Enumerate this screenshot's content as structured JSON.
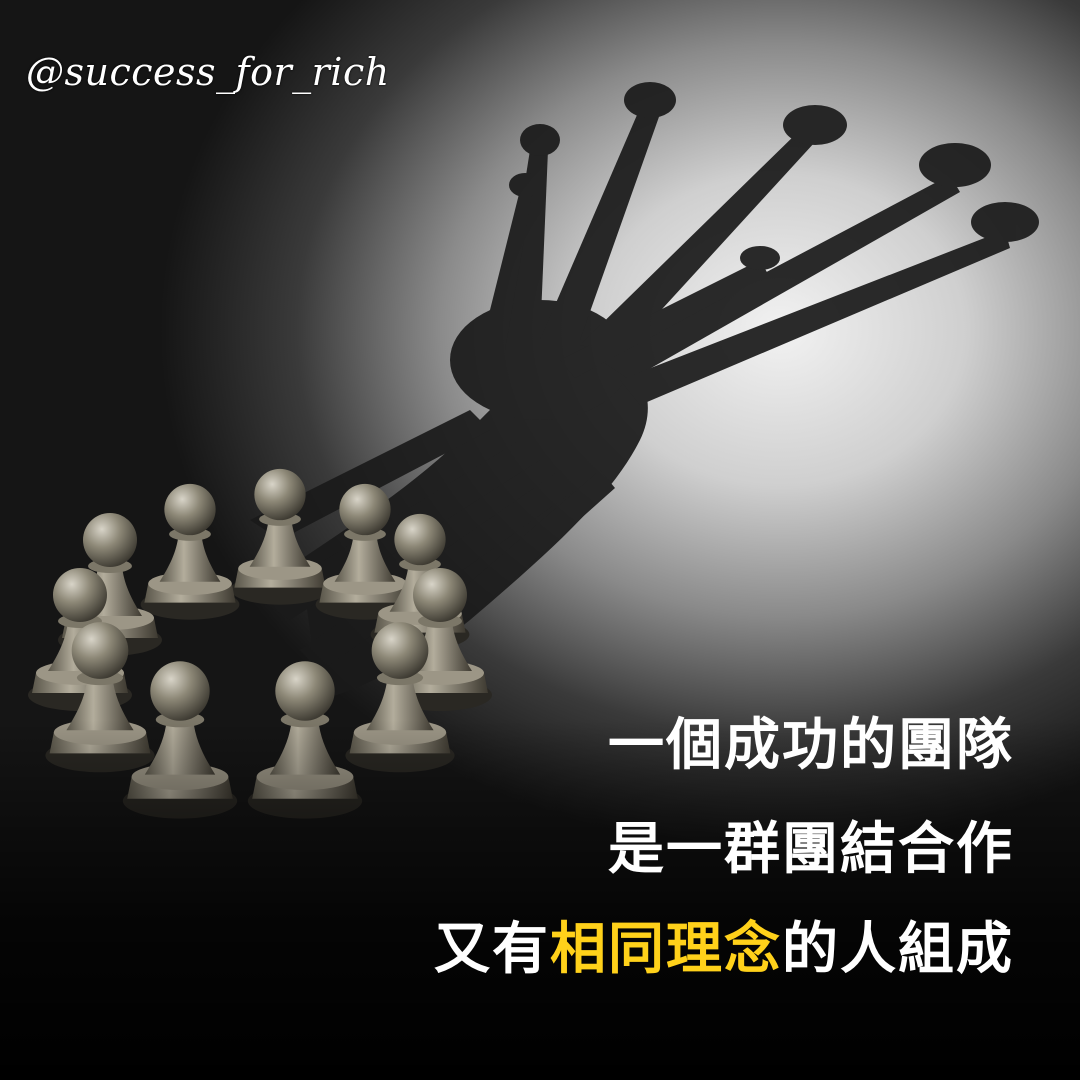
{
  "handle": "@success_for_rich",
  "quote": {
    "line1": "一個成功的團隊",
    "line2": "是一群團結合作",
    "line3": {
      "before": "又有",
      "highlight": "相同理念",
      "after": "的人組成"
    }
  },
  "colors": {
    "text": "#ffffff",
    "highlight": "#ffd11a",
    "background_dark": "#000000"
  }
}
